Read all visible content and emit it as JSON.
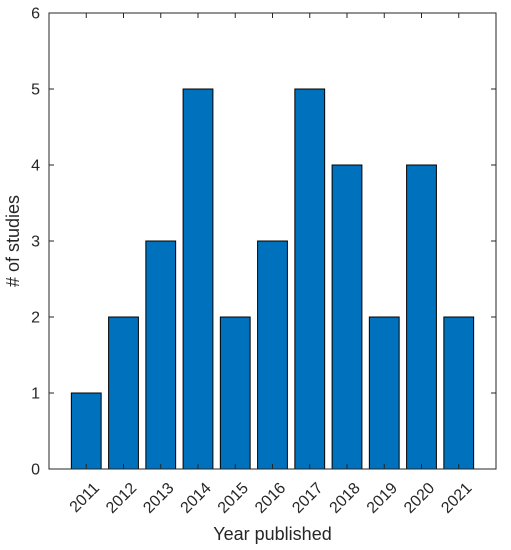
{
  "chart_data": {
    "type": "bar",
    "categories": [
      "2011",
      "2012",
      "2013",
      "2014",
      "2015",
      "2016",
      "2017",
      "2018",
      "2019",
      "2020",
      "2021"
    ],
    "values": [
      1,
      2,
      3,
      5,
      2,
      3,
      5,
      4,
      2,
      4,
      2
    ],
    "xlabel": "Year published",
    "ylabel": "# of studies",
    "ylim": [
      0,
      6
    ],
    "yticks": [
      0,
      1,
      2,
      3,
      4,
      5,
      6
    ],
    "grid": false,
    "legend": "none",
    "colors": {
      "bar_fill": "#0072BD",
      "bar_edge": "#000000",
      "axis": "#262626",
      "background": "#ffffff"
    }
  }
}
